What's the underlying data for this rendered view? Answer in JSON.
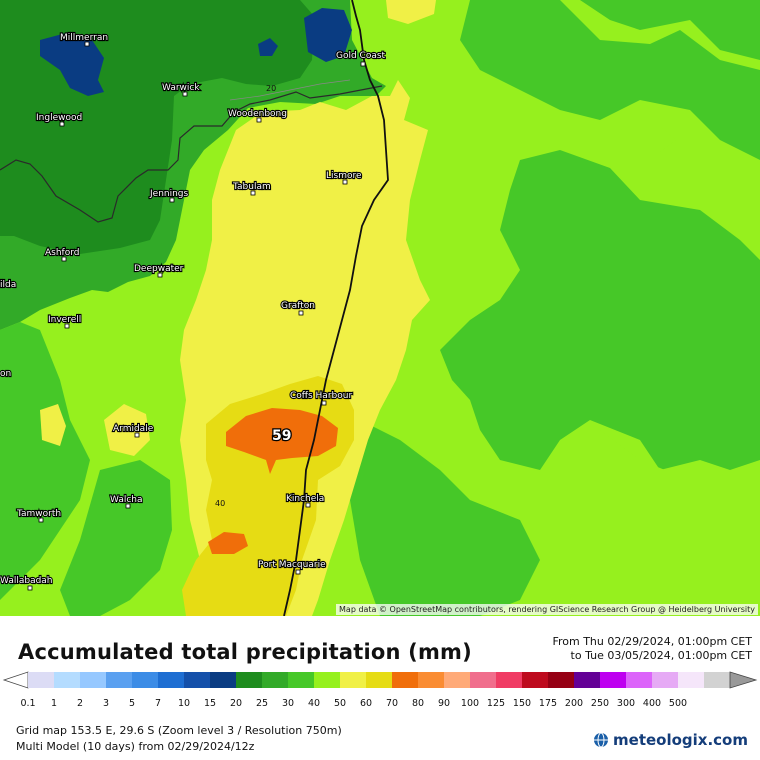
{
  "map": {
    "attribution": "Map data © OpenStreetMap contributors, rendering GIScience Research Group @ Heidelberg University",
    "max_value_label": "59",
    "contour_labels": [
      {
        "id": "c20",
        "text": "20"
      },
      {
        "id": "c40",
        "text": "40"
      }
    ],
    "cities": [
      {
        "id": "millmerran",
        "name": "Millmerran"
      },
      {
        "id": "gold-coast",
        "name": "Gold Coast"
      },
      {
        "id": "warwick",
        "name": "Warwick"
      },
      {
        "id": "inglewood",
        "name": "Inglewood"
      },
      {
        "id": "woodenbong",
        "name": "Woodenbong"
      },
      {
        "id": "tabulam",
        "name": "Tabulam"
      },
      {
        "id": "lismore",
        "name": "Lismore"
      },
      {
        "id": "jennings",
        "name": "Jennings"
      },
      {
        "id": "ashford",
        "name": "Ashford"
      },
      {
        "id": "deepwater",
        "name": "Deepwater"
      },
      {
        "id": "grafton",
        "name": "Grafton"
      },
      {
        "id": "inverell",
        "name": "Inverell"
      },
      {
        "id": "coffs-harbour",
        "name": "Coffs Harbour"
      },
      {
        "id": "armidale",
        "name": "Armidale"
      },
      {
        "id": "walcha",
        "name": "Walcha"
      },
      {
        "id": "kinchela",
        "name": "Kinchela"
      },
      {
        "id": "tamworth",
        "name": "Tamworth"
      },
      {
        "id": "port-macquarie",
        "name": "Port Macquarie"
      },
      {
        "id": "wallabadah",
        "name": "Wallabadah"
      },
      {
        "id": "ilda",
        "name": "ilda"
      },
      {
        "id": "on",
        "name": "on"
      }
    ]
  },
  "legend": {
    "title": "Accumulated total precipitation (mm)",
    "period_from": "From Thu 02/29/2024, 01:00pm CET",
    "period_to": "to Tue 03/05/2024, 01:00pm CET",
    "ticks": [
      "0.1",
      "1",
      "2",
      "3",
      "5",
      "7",
      "10",
      "15",
      "20",
      "25",
      "30",
      "40",
      "50",
      "60",
      "70",
      "80",
      "90",
      "100",
      "125",
      "150",
      "175",
      "200",
      "250",
      "300",
      "400",
      "500"
    ],
    "colors": [
      "#dcdcf5",
      "#b4dcff",
      "#96c8ff",
      "#5aa0f0",
      "#3c8ce6",
      "#1e6ed2",
      "#1450aa",
      "#0a3c82",
      "#1e8c1e",
      "#32aa28",
      "#46c828",
      "#96f01e",
      "#f0f046",
      "#e6dc14",
      "#f06e0a",
      "#fa8c32",
      "#ffaa78",
      "#f06e8c",
      "#f03c64",
      "#be0a1e",
      "#960014",
      "#640096",
      "#be00f0",
      "#dc64fa",
      "#e6aaf5",
      "#f5e6fa",
      "#d2d2d2"
    ],
    "info_line1": "Grid map 153.5 E, 29.6 S (Zoom level 3 / Resolution 750m)",
    "info_line2": "Multi Model (10 days) from 02/29/2024/12z",
    "logo_text": "meteologix.com"
  }
}
